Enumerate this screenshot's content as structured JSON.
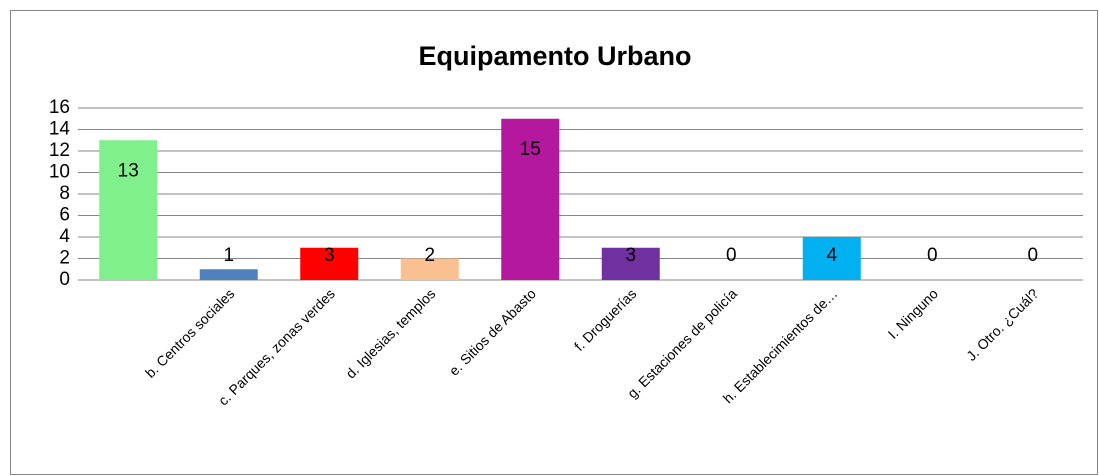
{
  "chart_data": {
    "type": "bar",
    "title": "Equipamento Urbano",
    "categories": [
      null,
      "b. Centros sociales",
      "c. Parques, zonas verdes",
      "d. Iglesias, templos",
      "e. Sitios de Abasto",
      "f. Droguerías",
      "g. Estaciones de policía",
      "h. Establecimientos de…",
      "I. Ninguno",
      "J. Otro. ¿Cuál?"
    ],
    "values": [
      13,
      1,
      3,
      2,
      15,
      3,
      0,
      4,
      0,
      0
    ],
    "colors": [
      "#80f08c",
      "#4f81bd",
      "#ff0000",
      "#fac090",
      "#b5179e",
      "#7030a0",
      null,
      "#00b0f0",
      null,
      null
    ],
    "ylim": [
      0,
      16
    ],
    "yticks": [
      0,
      2,
      4,
      6,
      8,
      10,
      12,
      14,
      16
    ],
    "grid": true
  }
}
